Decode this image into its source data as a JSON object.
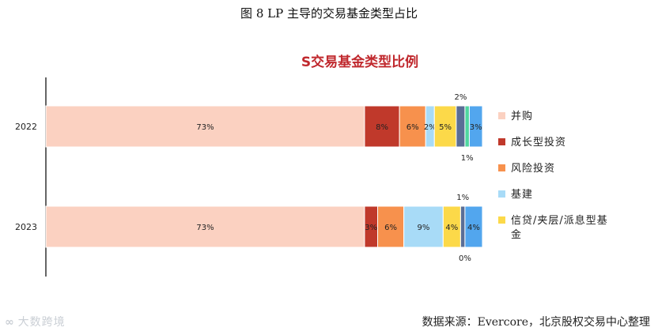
{
  "figure_title": "图 8 LP 主导的交易基金类型占比",
  "source_note": "数据来源：Evercore，北京股权交易中心整理",
  "watermark": "大数跨境",
  "colors": {
    "title_red": "#c0282d",
    "axis": "#333333",
    "segment_border": "#ffffff"
  },
  "chart_data": {
    "type": "bar",
    "orientation": "horizontal",
    "stacked": true,
    "title": "S交易基金类型比例",
    "xlabel": "",
    "ylabel": "",
    "xlim": [
      0,
      100
    ],
    "grid": false,
    "legend_position": "right",
    "categories": [
      "2022",
      "2023"
    ],
    "series": [
      {
        "name": "并购",
        "color": "#fbd1c1",
        "values": [
          73,
          73
        ],
        "labels": [
          "73%",
          "73%"
        ]
      },
      {
        "name": "成长型投资",
        "color": "#c0392b",
        "values": [
          8,
          3
        ],
        "labels": [
          "8%",
          "3%"
        ]
      },
      {
        "name": "风险投资",
        "color": "#f7914d",
        "values": [
          6,
          6
        ],
        "labels": [
          "6%",
          "6%"
        ]
      },
      {
        "name": "基建",
        "color": "#a8dbf7",
        "values": [
          2,
          9
        ],
        "labels": [
          "2%",
          "9%"
        ]
      },
      {
        "name": "信贷/夹层/派息型基金",
        "color": "#fcd949",
        "values": [
          5,
          4
        ],
        "labels": [
          "5%",
          "4%"
        ]
      },
      {
        "name": "",
        "color": "#5a6e96",
        "values": [
          2,
          1
        ],
        "labels": [
          "2%",
          "1%"
        ]
      },
      {
        "name": "",
        "color": "#4fd6a0",
        "values": [
          1,
          0
        ],
        "labels": [
          "1%",
          "0%"
        ]
      },
      {
        "name": "",
        "color": "#52a6ee",
        "values": [
          3,
          4
        ],
        "labels": [
          "3%",
          "4%"
        ]
      }
    ]
  }
}
